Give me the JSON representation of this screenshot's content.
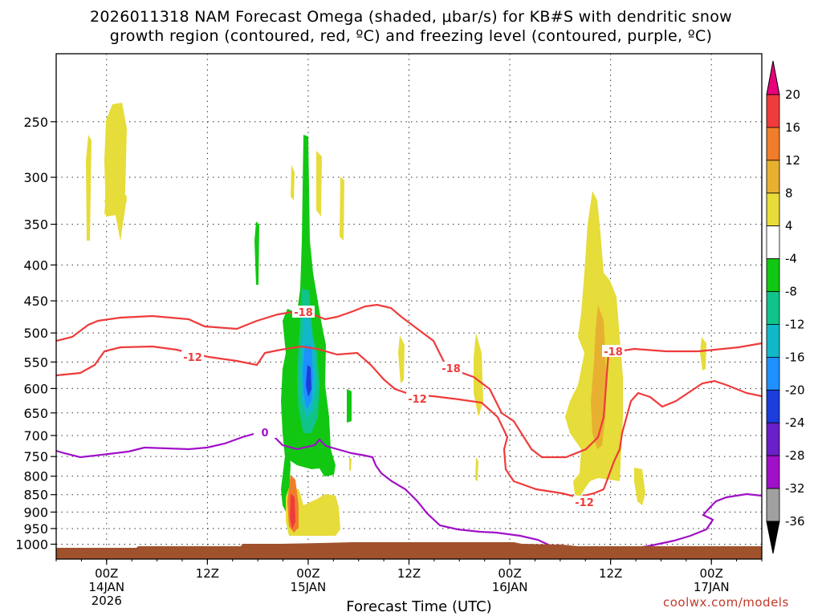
{
  "chart_data": {
    "type": "heatmap",
    "title": "2026011318 NAM Forecast Omega (shaded, μbar/s) for KB#S with dendritic snow",
    "subtitle": "growth region (contoured, red, ºC) and freezing level (contoured, purple, ºC)",
    "xlabel": "Forecast Time (UTC)",
    "ylabel": "",
    "x_ticks": [
      {
        "label": "00Z",
        "date": "14JAN",
        "year": "2026",
        "hours": 6
      },
      {
        "label": "12Z",
        "date": "",
        "year": "",
        "hours": 18
      },
      {
        "label": "00Z",
        "date": "15JAN",
        "year": "",
        "hours": 30
      },
      {
        "label": "12Z",
        "date": "",
        "year": "",
        "hours": 42
      },
      {
        "label": "00Z",
        "date": "16JAN",
        "year": "",
        "hours": 54
      },
      {
        "label": "12Z",
        "date": "",
        "year": "",
        "hours": 66
      },
      {
        "label": "00Z",
        "date": "17JAN",
        "year": "",
        "hours": 78
      }
    ],
    "y_ticks": [
      250,
      300,
      350,
      400,
      450,
      500,
      550,
      600,
      650,
      700,
      750,
      800,
      850,
      900,
      950,
      1000
    ],
    "y_scale": "log",
    "y_inverted": true,
    "ylim": [
      200,
      1050
    ],
    "grid": true,
    "colorbar": {
      "labels": [
        "20",
        "16",
        "12",
        "8",
        "4",
        "-4",
        "-8",
        "-12",
        "-16",
        "-20",
        "-24",
        "-28",
        "-32",
        "-36"
      ],
      "colors": [
        "#e8007a",
        "#ef3b3b",
        "#f07d2a",
        "#e8b030",
        "#e6dc3a",
        "#ffffff",
        "#12c712",
        "#10c38a",
        "#12b8c8",
        "#1e90ff",
        "#1a3ddb",
        "#6a1fc8",
        "#a010c8",
        "#a0a0a0",
        "#000000"
      ]
    },
    "contour_labels": [
      {
        "text": "-18",
        "color": "#ef3b3b"
      },
      {
        "text": "-12",
        "color": "#ef3b3b"
      },
      {
        "text": "-18",
        "color": "#ef3b3b"
      },
      {
        "text": "-12",
        "color": "#ef3b3b"
      },
      {
        "text": "-18",
        "color": "#ef3b3b"
      },
      {
        "text": "-12",
        "color": "#ef3b3b"
      },
      {
        "text": "0",
        "color": "#a010c8"
      }
    ],
    "credit": "coolwx.com/models"
  }
}
